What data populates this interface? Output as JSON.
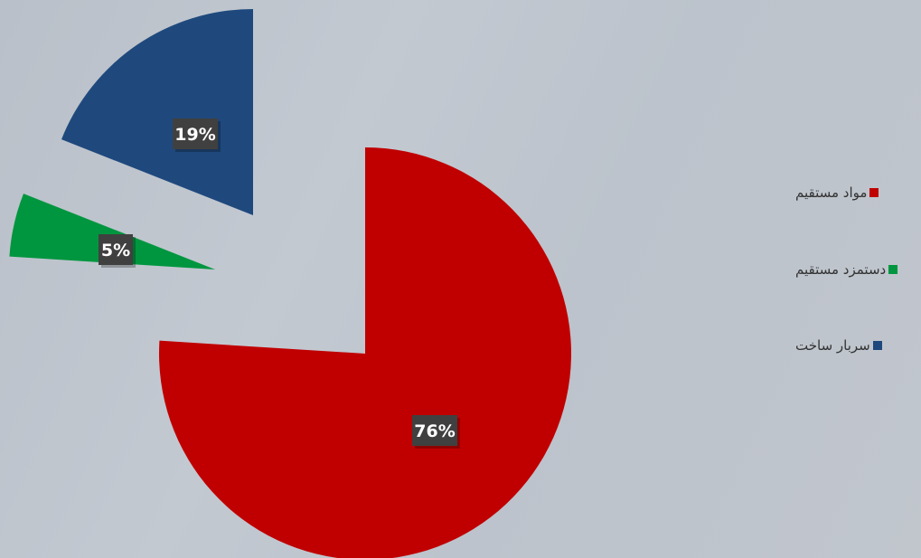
{
  "chart_data": {
    "type": "pie",
    "exploded": true,
    "slices": [
      {
        "label": "مواد مستقیم",
        "value": 76,
        "data_label": "76%",
        "color": "#c00000"
      },
      {
        "label": "دستمزد مستقیم",
        "value": 5,
        "data_label": "5%",
        "color": "#00963f"
      },
      {
        "label": "سربار ساخت",
        "value": 19,
        "data_label": "19%",
        "color": "#1f497d"
      }
    ],
    "legend": {
      "placement": "right"
    }
  }
}
